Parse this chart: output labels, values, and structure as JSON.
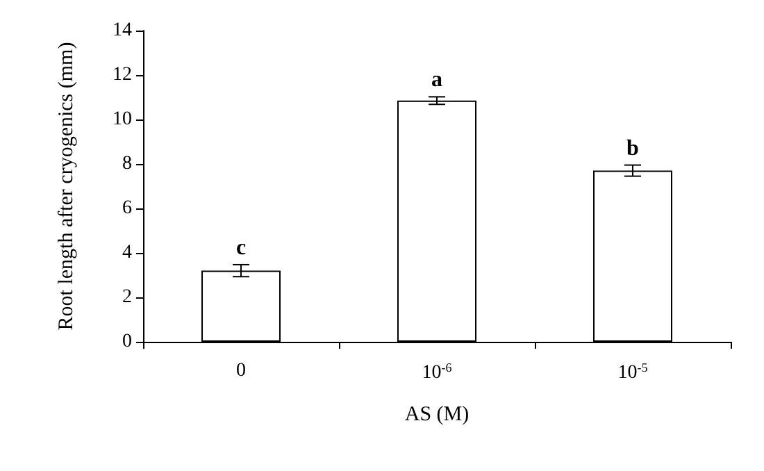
{
  "chart_data": {
    "type": "bar",
    "xlabel": "AS (M)",
    "ylabel": "Root length after cryogenics (mm)",
    "categories": [
      "0",
      "10$^{-6}$",
      "10$^{-5}$"
    ],
    "values": [
      3.2,
      10.85,
      7.7
    ],
    "errors": [
      0.27,
      0.17,
      0.25
    ],
    "color": "#ffffff",
    "ylim": [
      0,
      14
    ],
    "yticks": [
      0,
      2,
      4,
      6,
      8,
      10,
      12,
      14
    ],
    "grid": false,
    "annotations": [
      {
        "text": "c",
        "x": "0",
        "y": 3.2
      },
      {
        "text": "a",
        "x": "10$^{-6}$",
        "y": 10.85
      },
      {
        "text": "b",
        "x": "10$^{-5}$",
        "y": 7.7
      }
    ]
  }
}
